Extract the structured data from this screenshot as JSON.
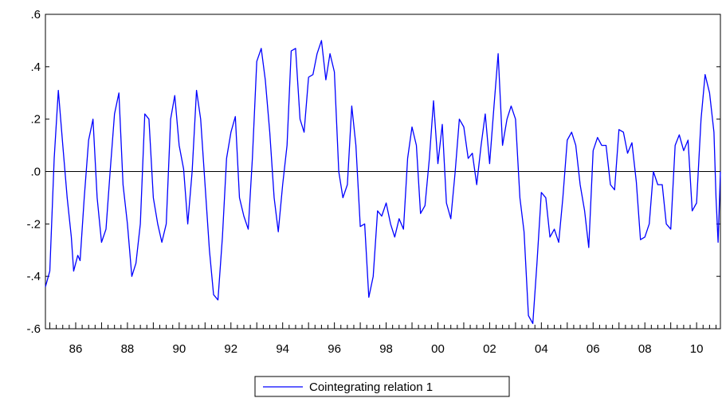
{
  "chart_data": {
    "type": "line",
    "title": "",
    "xlabel": "",
    "ylabel": "",
    "ylim": [
      -0.6,
      0.6
    ],
    "xlim": [
      1984.83,
      2010.92
    ],
    "yticks": [
      {
        "value": 0.6,
        "label": ".6"
      },
      {
        "value": 0.4,
        "label": ".4"
      },
      {
        "value": 0.2,
        "label": ".2"
      },
      {
        "value": 0.0,
        "label": ".0"
      },
      {
        "value": -0.2,
        "label": "-.2"
      },
      {
        "value": -0.4,
        "label": "-.4"
      },
      {
        "value": -0.6,
        "label": "-.6"
      }
    ],
    "xticks": [
      {
        "value": 1986,
        "label": "86"
      },
      {
        "value": 1988,
        "label": "88"
      },
      {
        "value": 1990,
        "label": "90"
      },
      {
        "value": 1992,
        "label": "92"
      },
      {
        "value": 1994,
        "label": "94"
      },
      {
        "value": 1996,
        "label": "96"
      },
      {
        "value": 1998,
        "label": "98"
      },
      {
        "value": 2000,
        "label": "00"
      },
      {
        "value": 2002,
        "label": "02"
      },
      {
        "value": 2004,
        "label": "04"
      },
      {
        "value": 2006,
        "label": "06"
      },
      {
        "value": 2008,
        "label": "08"
      },
      {
        "value": 2010,
        "label": "10"
      }
    ],
    "zero_line": true,
    "grid": false,
    "legend_position": "bottom-center",
    "series": [
      {
        "name": "Cointegrating relation 1",
        "color": "#0000ff",
        "points": [
          [
            1984.83,
            -0.44
          ],
          [
            1985.0,
            -0.38
          ],
          [
            1985.17,
            0.05
          ],
          [
            1985.33,
            0.31
          ],
          [
            1985.5,
            0.1
          ],
          [
            1985.67,
            -0.1
          ],
          [
            1985.83,
            -0.25
          ],
          [
            1985.92,
            -0.38
          ],
          [
            1986.08,
            -0.32
          ],
          [
            1986.17,
            -0.34
          ],
          [
            1986.33,
            -0.1
          ],
          [
            1986.5,
            0.12
          ],
          [
            1986.67,
            0.2
          ],
          [
            1986.83,
            -0.1
          ],
          [
            1987.0,
            -0.27
          ],
          [
            1987.17,
            -0.22
          ],
          [
            1987.33,
            0.0
          ],
          [
            1987.5,
            0.22
          ],
          [
            1987.67,
            0.3
          ],
          [
            1987.83,
            -0.05
          ],
          [
            1988.0,
            -0.2
          ],
          [
            1988.17,
            -0.4
          ],
          [
            1988.33,
            -0.35
          ],
          [
            1988.5,
            -0.2
          ],
          [
            1988.67,
            0.22
          ],
          [
            1988.83,
            0.2
          ],
          [
            1989.0,
            -0.1
          ],
          [
            1989.17,
            -0.2
          ],
          [
            1989.33,
            -0.27
          ],
          [
            1989.5,
            -0.2
          ],
          [
            1989.67,
            0.2
          ],
          [
            1989.83,
            0.29
          ],
          [
            1990.0,
            0.1
          ],
          [
            1990.17,
            0.01
          ],
          [
            1990.33,
            -0.2
          ],
          [
            1990.5,
            0.0
          ],
          [
            1990.67,
            0.31
          ],
          [
            1990.83,
            0.2
          ],
          [
            1991.0,
            -0.05
          ],
          [
            1991.17,
            -0.3
          ],
          [
            1991.33,
            -0.47
          ],
          [
            1991.5,
            -0.49
          ],
          [
            1991.67,
            -0.25
          ],
          [
            1991.83,
            0.05
          ],
          [
            1992.0,
            0.15
          ],
          [
            1992.17,
            0.21
          ],
          [
            1992.33,
            -0.1
          ],
          [
            1992.5,
            -0.17
          ],
          [
            1992.67,
            -0.22
          ],
          [
            1992.83,
            0.05
          ],
          [
            1993.0,
            0.42
          ],
          [
            1993.17,
            0.47
          ],
          [
            1993.33,
            0.35
          ],
          [
            1993.5,
            0.15
          ],
          [
            1993.67,
            -0.1
          ],
          [
            1993.83,
            -0.23
          ],
          [
            1994.0,
            -0.05
          ],
          [
            1994.17,
            0.1
          ],
          [
            1994.33,
            0.46
          ],
          [
            1994.5,
            0.47
          ],
          [
            1994.67,
            0.2
          ],
          [
            1994.83,
            0.15
          ],
          [
            1995.0,
            0.36
          ],
          [
            1995.17,
            0.37
          ],
          [
            1995.33,
            0.45
          ],
          [
            1995.5,
            0.5
          ],
          [
            1995.67,
            0.35
          ],
          [
            1995.83,
            0.45
          ],
          [
            1996.0,
            0.38
          ],
          [
            1996.17,
            0.0
          ],
          [
            1996.33,
            -0.1
          ],
          [
            1996.5,
            -0.05
          ],
          [
            1996.67,
            0.25
          ],
          [
            1996.83,
            0.1
          ],
          [
            1997.0,
            -0.21
          ],
          [
            1997.17,
            -0.2
          ],
          [
            1997.33,
            -0.48
          ],
          [
            1997.5,
            -0.4
          ],
          [
            1997.67,
            -0.15
          ],
          [
            1997.83,
            -0.17
          ],
          [
            1998.0,
            -0.12
          ],
          [
            1998.17,
            -0.2
          ],
          [
            1998.33,
            -0.25
          ],
          [
            1998.5,
            -0.18
          ],
          [
            1998.67,
            -0.22
          ],
          [
            1998.83,
            0.05
          ],
          [
            1999.0,
            0.17
          ],
          [
            1999.17,
            0.1
          ],
          [
            1999.33,
            -0.16
          ],
          [
            1999.5,
            -0.13
          ],
          [
            1999.67,
            0.05
          ],
          [
            1999.83,
            0.27
          ],
          [
            2000.0,
            0.03
          ],
          [
            2000.17,
            0.18
          ],
          [
            2000.33,
            -0.12
          ],
          [
            2000.5,
            -0.18
          ],
          [
            2000.67,
            0.0
          ],
          [
            2000.83,
            0.2
          ],
          [
            2001.0,
            0.17
          ],
          [
            2001.17,
            0.05
          ],
          [
            2001.33,
            0.07
          ],
          [
            2001.5,
            -0.05
          ],
          [
            2001.67,
            0.1
          ],
          [
            2001.83,
            0.22
          ],
          [
            2002.0,
            0.03
          ],
          [
            2002.17,
            0.25
          ],
          [
            2002.33,
            0.45
          ],
          [
            2002.5,
            0.1
          ],
          [
            2002.67,
            0.2
          ],
          [
            2002.83,
            0.25
          ],
          [
            2003.0,
            0.2
          ],
          [
            2003.17,
            -0.1
          ],
          [
            2003.33,
            -0.23
          ],
          [
            2003.5,
            -0.55
          ],
          [
            2003.67,
            -0.58
          ],
          [
            2003.83,
            -0.35
          ],
          [
            2004.0,
            -0.08
          ],
          [
            2004.17,
            -0.1
          ],
          [
            2004.33,
            -0.25
          ],
          [
            2004.5,
            -0.22
          ],
          [
            2004.67,
            -0.27
          ],
          [
            2004.83,
            -0.1
          ],
          [
            2005.0,
            0.12
          ],
          [
            2005.17,
            0.15
          ],
          [
            2005.33,
            0.1
          ],
          [
            2005.5,
            -0.05
          ],
          [
            2005.67,
            -0.15
          ],
          [
            2005.83,
            -0.29
          ],
          [
            2006.0,
            0.08
          ],
          [
            2006.17,
            0.13
          ],
          [
            2006.33,
            0.1
          ],
          [
            2006.5,
            0.1
          ],
          [
            2006.67,
            -0.05
          ],
          [
            2006.83,
            -0.07
          ],
          [
            2007.0,
            0.16
          ],
          [
            2007.17,
            0.15
          ],
          [
            2007.33,
            0.07
          ],
          [
            2007.5,
            0.11
          ],
          [
            2007.67,
            -0.04
          ],
          [
            2007.83,
            -0.26
          ],
          [
            2008.0,
            -0.25
          ],
          [
            2008.17,
            -0.2
          ],
          [
            2008.33,
            0.0
          ],
          [
            2008.5,
            -0.05
          ],
          [
            2008.67,
            -0.05
          ],
          [
            2008.83,
            -0.2
          ],
          [
            2009.0,
            -0.22
          ],
          [
            2009.17,
            0.1
          ],
          [
            2009.33,
            0.14
          ],
          [
            2009.5,
            0.08
          ],
          [
            2009.67,
            0.12
          ],
          [
            2009.83,
            -0.15
          ],
          [
            2010.0,
            -0.12
          ],
          [
            2010.17,
            0.2
          ],
          [
            2010.33,
            0.37
          ],
          [
            2010.5,
            0.3
          ],
          [
            2010.67,
            0.15
          ],
          [
            2010.75,
            -0.1
          ],
          [
            2010.83,
            -0.27
          ],
          [
            2010.92,
            0.0
          ]
        ]
      }
    ]
  }
}
